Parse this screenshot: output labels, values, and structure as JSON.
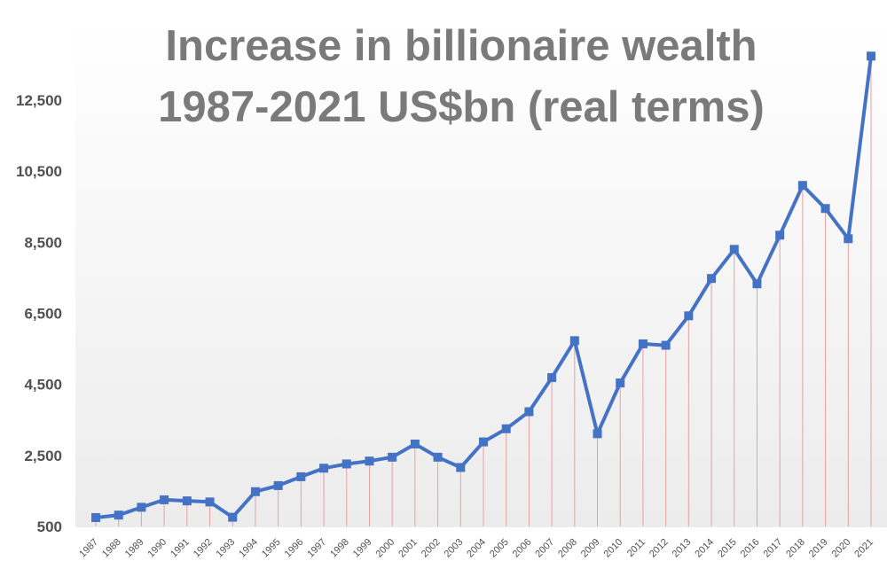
{
  "chart_data": {
    "type": "line",
    "title_lines": [
      "Increase in billionaire wealth",
      "1987-2021 US$bn (real terms)"
    ],
    "xlabel": "",
    "ylabel": "",
    "ylim": [
      500,
      14000
    ],
    "yticks": [
      500,
      2500,
      4500,
      6500,
      8500,
      10500,
      12500
    ],
    "ytick_labels": [
      "500",
      "2,500",
      "4,500",
      "6,500",
      "8,500",
      "10,500",
      "12,500"
    ],
    "grid": false,
    "drop_lines": true,
    "colors": {
      "line": "#4472c4",
      "marker": "#4472c4",
      "drop_line": "#e8a0a0",
      "title": "#7a7a7a",
      "tick": "#505050"
    },
    "x": [
      "1987",
      "1988",
      "1989",
      "1990",
      "1991",
      "1992",
      "1993",
      "1994",
      "1995",
      "1996",
      "1997",
      "1998",
      "1999",
      "2000",
      "2001",
      "2002",
      "2003",
      "2004",
      "2005",
      "2006",
      "2007",
      "2008",
      "2009",
      "2010",
      "2011",
      "2012",
      "2013",
      "2014",
      "2015",
      "2016",
      "2017",
      "2018",
      "2019",
      "2020",
      "2021"
    ],
    "series": [
      {
        "values": [
          750,
          820,
          1040,
          1250,
          1220,
          1190,
          760,
          1480,
          1650,
          1900,
          2140,
          2260,
          2340,
          2450,
          2820,
          2450,
          2160,
          2880,
          3250,
          3730,
          4690,
          5730,
          3110,
          4540,
          5640,
          5600,
          6430,
          7480,
          8300,
          7330,
          8700,
          10100,
          9450,
          8600,
          13740
        ]
      }
    ]
  }
}
